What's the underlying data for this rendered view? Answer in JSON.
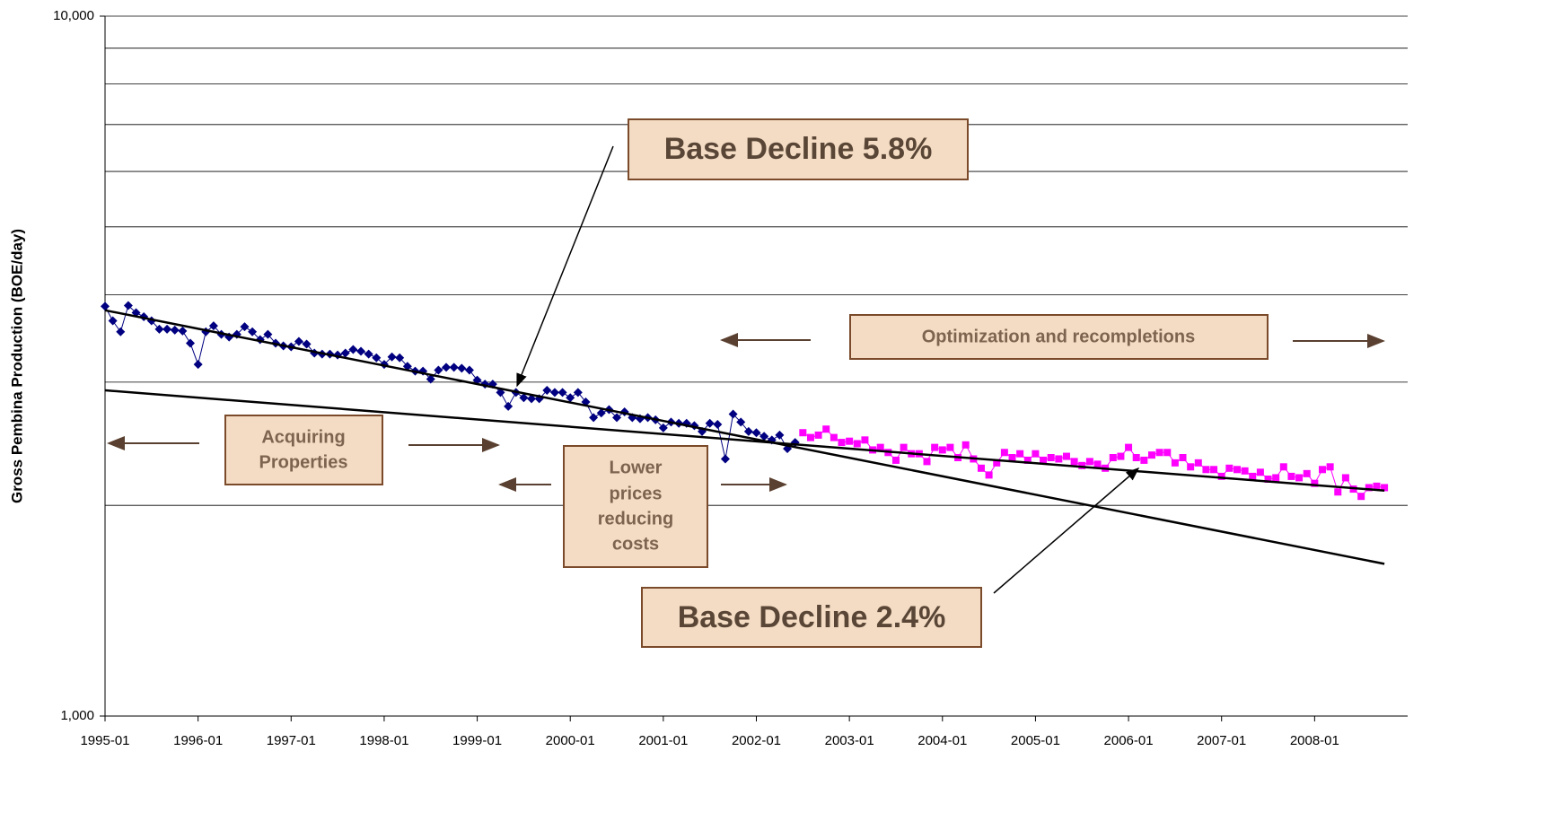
{
  "chart_data": {
    "type": "line",
    "y_label": "Gross Pembina Production (BOE/day)",
    "log_y": true,
    "ylim": [
      1000,
      10000
    ],
    "yticks": [
      {
        "value": 1000,
        "label": "1,000"
      },
      {
        "value": 10000,
        "label": "10,000"
      }
    ],
    "y_minor_grid": [
      2000,
      3000,
      4000,
      5000,
      6000,
      7000,
      8000,
      9000
    ],
    "grid": true,
    "xlim": [
      "1995-01",
      "2009-01"
    ],
    "xticks": [
      "1995-01",
      "1996-01",
      "1997-01",
      "1998-01",
      "1999-01",
      "2000-01",
      "2001-01",
      "2002-01",
      "2003-01",
      "2004-01",
      "2005-01",
      "2006-01",
      "2007-01",
      "2008-01"
    ],
    "series": [
      {
        "color": "#000080",
        "marker": "diamond",
        "x": [
          "1995-01",
          "1995-02",
          "1995-03",
          "1995-04",
          "1995-05",
          "1995-06",
          "1995-07",
          "1995-08",
          "1995-09",
          "1995-10",
          "1995-11",
          "1995-12",
          "1996-01",
          "1996-02",
          "1996-03",
          "1996-04",
          "1996-05",
          "1996-06",
          "1996-07",
          "1996-08",
          "1996-09",
          "1996-10",
          "1996-11",
          "1996-12",
          "1997-01",
          "1997-02",
          "1997-03",
          "1997-04",
          "1997-05",
          "1997-06",
          "1997-07",
          "1997-08",
          "1997-09",
          "1997-10",
          "1997-11",
          "1997-12",
          "1998-01",
          "1998-02",
          "1998-03",
          "1998-04",
          "1998-05",
          "1998-06",
          "1998-07",
          "1998-08",
          "1998-09",
          "1998-10",
          "1998-11",
          "1998-12",
          "1999-01",
          "1999-02",
          "1999-03",
          "1999-04",
          "1999-05",
          "1999-06",
          "1999-07",
          "1999-08",
          "1999-09",
          "1999-10",
          "1999-11",
          "1999-12",
          "2000-01",
          "2000-02",
          "2000-03",
          "2000-04",
          "2000-05",
          "2000-06",
          "2000-07",
          "2000-08",
          "2000-09",
          "2000-10",
          "2000-11",
          "2000-12",
          "2001-01",
          "2001-02",
          "2001-03",
          "2001-04",
          "2001-05",
          "2001-06",
          "2001-07",
          "2001-08",
          "2001-09",
          "2001-10",
          "2001-11",
          "2001-12",
          "2002-01",
          "2002-02",
          "2002-03",
          "2002-04",
          "2002-05",
          "2002-06"
        ],
        "values": [
          3850,
          3670,
          3540,
          3860,
          3770,
          3720,
          3670,
          3570,
          3570,
          3560,
          3550,
          3410,
          3180,
          3540,
          3610,
          3510,
          3480,
          3510,
          3600,
          3540,
          3450,
          3510,
          3410,
          3380,
          3370,
          3430,
          3400,
          3300,
          3290,
          3290,
          3280,
          3300,
          3340,
          3320,
          3290,
          3250,
          3180,
          3260,
          3250,
          3160,
          3110,
          3110,
          3030,
          3120,
          3150,
          3150,
          3140,
          3120,
          3020,
          2980,
          2980,
          2900,
          2770,
          2900,
          2850,
          2840,
          2840,
          2920,
          2900,
          2900,
          2850,
          2900,
          2810,
          2670,
          2710,
          2740,
          2670,
          2720,
          2670,
          2660,
          2670,
          2650,
          2580,
          2630,
          2620,
          2620,
          2600,
          2550,
          2620,
          2610,
          2330,
          2700,
          2630,
          2550,
          2540,
          2510,
          2480,
          2520,
          2410,
          2460
        ]
      },
      {
        "color": "#ff00ff",
        "marker": "square",
        "x": [
          "2002-07",
          "2002-08",
          "2002-09",
          "2002-10",
          "2002-11",
          "2002-12",
          "2003-01",
          "2003-02",
          "2003-03",
          "2003-04",
          "2003-05",
          "2003-06",
          "2003-07",
          "2003-08",
          "2003-09",
          "2003-10",
          "2003-11",
          "2003-12",
          "2004-01",
          "2004-02",
          "2004-03",
          "2004-04",
          "2004-05",
          "2004-06",
          "2004-07",
          "2004-08",
          "2004-09",
          "2004-10",
          "2004-11",
          "2004-12",
          "2005-01",
          "2005-02",
          "2005-03",
          "2005-04",
          "2005-05",
          "2005-06",
          "2005-07",
          "2005-08",
          "2005-09",
          "2005-10",
          "2005-11",
          "2005-12",
          "2006-01",
          "2006-02",
          "2006-03",
          "2006-04",
          "2006-05",
          "2006-06",
          "2006-07",
          "2006-08",
          "2006-09",
          "2006-10",
          "2006-11",
          "2006-12",
          "2007-01",
          "2007-02",
          "2007-03",
          "2007-04",
          "2007-05",
          "2007-06",
          "2007-07",
          "2007-08",
          "2007-09",
          "2007-10",
          "2007-11",
          "2007-12",
          "2008-01",
          "2008-02",
          "2008-03",
          "2008-04",
          "2008-05",
          "2008-06",
          "2008-07",
          "2008-08",
          "2008-09",
          "2008-10"
        ],
        "values": [
          2540,
          2500,
          2520,
          2570,
          2500,
          2460,
          2470,
          2450,
          2480,
          2400,
          2420,
          2380,
          2320,
          2420,
          2370,
          2370,
          2310,
          2420,
          2400,
          2420,
          2340,
          2440,
          2330,
          2260,
          2210,
          2300,
          2380,
          2340,
          2370,
          2320,
          2370,
          2320,
          2340,
          2330,
          2350,
          2310,
          2280,
          2310,
          2290,
          2260,
          2340,
          2350,
          2420,
          2340,
          2320,
          2360,
          2380,
          2380,
          2300,
          2340,
          2270,
          2300,
          2250,
          2250,
          2200,
          2260,
          2250,
          2240,
          2200,
          2230,
          2180,
          2190,
          2270,
          2200,
          2190,
          2220,
          2150,
          2250,
          2270,
          2090,
          2190,
          2110,
          2060,
          2120,
          2130,
          2120
        ]
      },
      {
        "color": "#000000",
        "marker": "none",
        "x": [
          "1995-01",
          "2008-10"
        ],
        "values": [
          3800,
          1650
        ]
      },
      {
        "color": "#000000",
        "marker": "none",
        "x": [
          "1995-01",
          "2008-10"
        ],
        "values": [
          2920,
          2100
        ]
      }
    ],
    "annotations": [
      {
        "text": "Base Decline 5.8%"
      },
      {
        "text": "Base Decline 2.4%"
      },
      {
        "text": "Optimization and recompletions"
      },
      {
        "lines": [
          "Acquiring",
          "Properties"
        ]
      },
      {
        "lines": [
          "Lower",
          "prices",
          "reducing",
          "costs"
        ]
      }
    ]
  }
}
